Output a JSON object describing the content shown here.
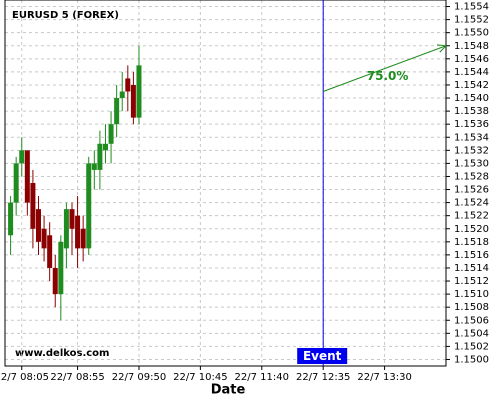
{
  "chart_data": {
    "type": "candlestick",
    "title": "EURUSD 5 (FOREX)",
    "watermark": "www.delkos.com",
    "x_label": "Date",
    "x": [
      "22/7 07:55",
      "22/7 08:00",
      "22/7 08:05",
      "22/7 08:10",
      "22/7 08:15",
      "22/7 08:20",
      "22/7 08:25",
      "22/7 08:30",
      "22/7 08:35",
      "22/7 08:40",
      "22/7 08:45",
      "22/7 08:50",
      "22/7 08:55",
      "22/7 09:00",
      "22/7 09:05",
      "22/7 09:10",
      "22/7 09:15",
      "22/7 09:20",
      "22/7 09:25",
      "22/7 09:30",
      "22/7 09:35",
      "22/7 09:40",
      "22/7 09:45",
      "22/7 09:50"
    ],
    "open": [
      1.1519,
      1.1524,
      1.153,
      1.1532,
      1.1527,
      1.1523,
      1.152,
      1.1519,
      1.1514,
      1.151,
      1.1517,
      1.1523,
      1.1522,
      1.152,
      1.1517,
      1.1529,
      1.1529,
      1.1532,
      1.1533,
      1.1536,
      1.154,
      1.1543,
      1.1542,
      1.1537
    ],
    "high": [
      1.1525,
      1.1531,
      1.1534,
      1.1532,
      1.1529,
      1.1525,
      1.1522,
      1.1521,
      1.1516,
      1.1519,
      1.1524,
      1.1524,
      1.1525,
      1.1522,
      1.1531,
      1.1532,
      1.1535,
      1.1536,
      1.1538,
      1.1542,
      1.1544,
      1.1545,
      1.1544,
      1.1548
    ],
    "low": [
      1.1516,
      1.1522,
      1.1528,
      1.1522,
      1.1517,
      1.1516,
      1.1515,
      1.1512,
      1.1508,
      1.1506,
      1.1514,
      1.1516,
      1.1514,
      1.1515,
      1.1516,
      1.1526,
      1.1526,
      1.153,
      1.153,
      1.1534,
      1.1538,
      1.1538,
      1.1536,
      1.1536
    ],
    "close": [
      1.1524,
      1.153,
      1.1532,
      1.1524,
      1.152,
      1.1518,
      1.1517,
      1.1514,
      1.151,
      1.1518,
      1.1523,
      1.152,
      1.1517,
      1.1517,
      1.153,
      1.153,
      1.1533,
      1.1533,
      1.1536,
      1.154,
      1.1541,
      1.1541,
      1.1537,
      1.1545
    ],
    "up_color": "#1f8c1f",
    "down_color": "#8b0000",
    "xlim": [
      "22/7 07:50",
      "22/7 14:25"
    ],
    "xticks": [
      "22/7 08:05",
      "22/7 08:55",
      "22/7 09:50",
      "22/7 10:45",
      "22/7 11:40",
      "22/7 12:35",
      "22/7 13:30"
    ],
    "ylim": [
      1.1499,
      1.1555
    ],
    "yticks": [
      {
        "value": 1.15,
        "label": "1.1500"
      },
      {
        "value": 1.1502,
        "label": "1.1502"
      },
      {
        "value": 1.1504,
        "label": "1.1504"
      },
      {
        "value": 1.1506,
        "label": "1.1506"
      },
      {
        "value": 1.1508,
        "label": "1.1508"
      },
      {
        "value": 1.151,
        "label": "1.1510"
      },
      {
        "value": 1.1512,
        "label": "1.1512"
      },
      {
        "value": 1.1514,
        "label": "1.1514"
      },
      {
        "value": 1.1516,
        "label": "1.1516"
      },
      {
        "value": 1.1518,
        "label": "1.1518"
      },
      {
        "value": 1.152,
        "label": "1.1520"
      },
      {
        "value": 1.1522,
        "label": "1.1522"
      },
      {
        "value": 1.1524,
        "label": "1.1524"
      },
      {
        "value": 1.1526,
        "label": "1.1526"
      },
      {
        "value": 1.1528,
        "label": "1.1528"
      },
      {
        "value": 1.153,
        "label": "1.1530"
      },
      {
        "value": 1.1532,
        "label": "1.1532"
      },
      {
        "value": 1.1534,
        "label": "1.1534"
      },
      {
        "value": 1.1536,
        "label": "1.1536"
      },
      {
        "value": 1.1538,
        "label": "1.1538"
      },
      {
        "value": 1.154,
        "label": "1.1540"
      },
      {
        "value": 1.1542,
        "label": "1.1542"
      },
      {
        "value": 1.1544,
        "label": "1.1544"
      },
      {
        "value": 1.1546,
        "label": "1.1546"
      },
      {
        "value": 1.1548,
        "label": "1.1548"
      },
      {
        "value": 1.155,
        "label": "1.1550"
      },
      {
        "value": 1.1552,
        "label": "1.1552"
      },
      {
        "value": 1.1554,
        "label": "1.1554"
      }
    ],
    "grid": true,
    "event": {
      "label": "Event",
      "x": "22/7 12:35",
      "color": "#0000ee"
    },
    "projection": {
      "label": "75.0%",
      "color": "#1f8c1f",
      "start": {
        "x": "22/7 12:35",
        "y": 1.1541
      },
      "end": {
        "x": "22/7 14:25",
        "y": 1.1548
      }
    }
  }
}
